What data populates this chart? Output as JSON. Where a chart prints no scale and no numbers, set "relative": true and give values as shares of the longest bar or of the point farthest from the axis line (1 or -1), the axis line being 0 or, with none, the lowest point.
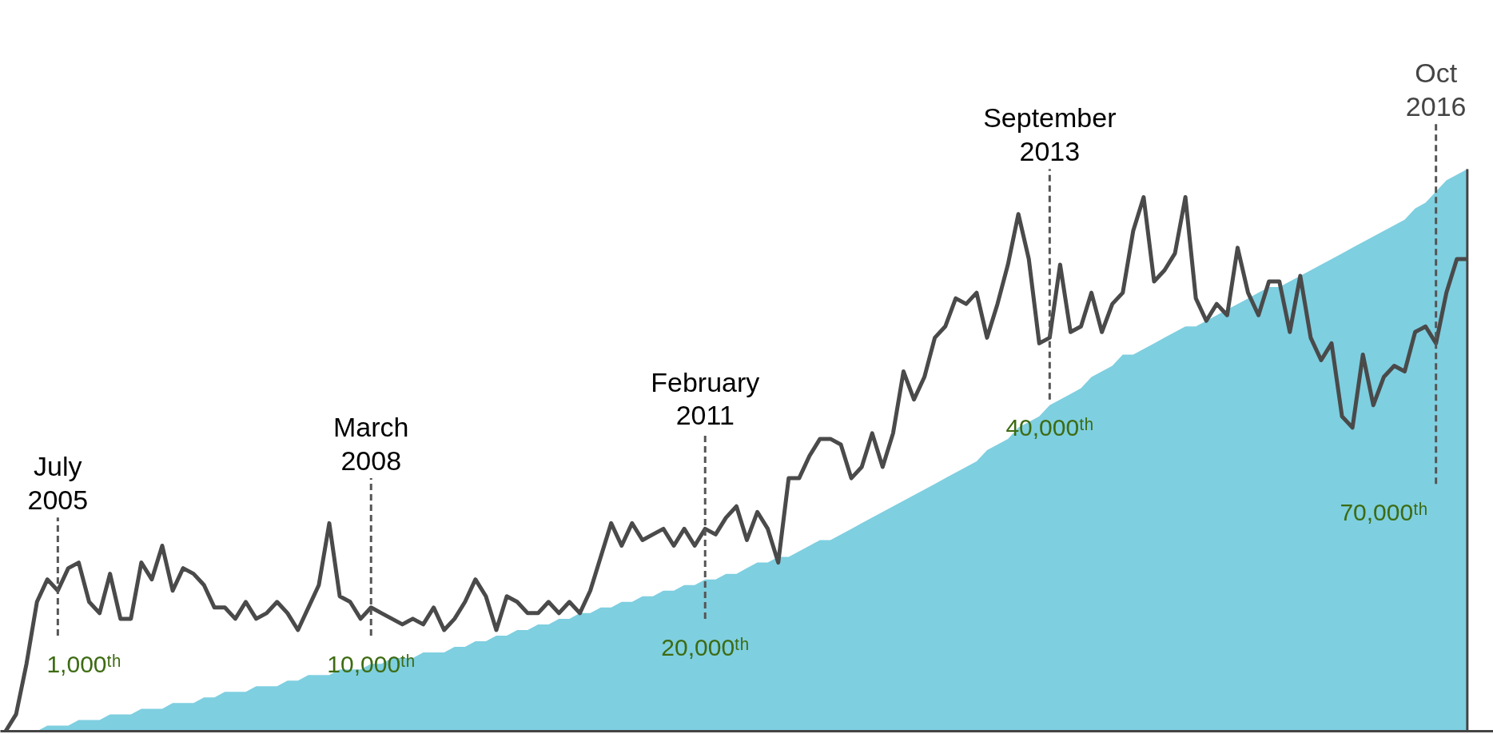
{
  "chart_data": {
    "type": "line",
    "relative": true,
    "categories": [
      null,
      null,
      null,
      null,
      null,
      "July\n2005",
      null,
      null,
      null,
      null,
      null,
      null,
      null,
      null,
      null,
      null,
      null,
      null,
      null,
      null,
      null,
      null,
      null,
      null,
      null,
      null,
      null,
      null,
      null,
      null,
      null,
      null,
      null,
      null,
      null,
      "March\n2008",
      null,
      null,
      null,
      null,
      null,
      null,
      null,
      null,
      null,
      null,
      null,
      null,
      null,
      null,
      null,
      null,
      null,
      null,
      null,
      null,
      null,
      null,
      null,
      null,
      null,
      null,
      null,
      null,
      null,
      null,
      null,
      "February\n2011",
      null,
      null,
      null,
      null,
      null,
      null,
      null,
      null,
      null,
      null,
      null,
      null,
      null,
      null,
      null,
      null,
      null,
      null,
      null,
      null,
      null,
      null,
      null,
      null,
      null,
      null,
      null,
      null,
      null,
      null,
      null,
      null,
      "September\n2013",
      null,
      null,
      null,
      null,
      null,
      null,
      null,
      null,
      null,
      null,
      null,
      null,
      null,
      null,
      null,
      null,
      null,
      null,
      null,
      null,
      null,
      null,
      null,
      null,
      null,
      null,
      null,
      null,
      null,
      null,
      null,
      null,
      null,
      null,
      null,
      null,
      "Oct\n2016",
      null,
      null,
      null
    ],
    "series": [
      {
        "type": "area",
        "color": "#7ecfe0",
        "values": [
          0,
          0,
          0,
          0,
          0.01,
          0.01,
          0.01,
          0.02,
          0.02,
          0.02,
          0.03,
          0.03,
          0.03,
          0.04,
          0.04,
          0.04,
          0.05,
          0.05,
          0.05,
          0.06,
          0.06,
          0.07,
          0.07,
          0.07,
          0.08,
          0.08,
          0.08,
          0.09,
          0.09,
          0.1,
          0.1,
          0.1,
          0.11,
          0.11,
          0.11,
          0.12,
          0.12,
          0.13,
          0.13,
          0.13,
          0.14,
          0.14,
          0.14,
          0.15,
          0.15,
          0.16,
          0.16,
          0.17,
          0.17,
          0.18,
          0.18,
          0.19,
          0.19,
          0.2,
          0.2,
          0.21,
          0.21,
          0.22,
          0.22,
          0.23,
          0.23,
          0.24,
          0.24,
          0.25,
          0.25,
          0.26,
          0.26,
          0.27,
          0.27,
          0.28,
          0.28,
          0.29,
          0.3,
          0.3,
          0.31,
          0.31,
          0.32,
          0.33,
          0.34,
          0.34,
          0.35,
          0.36,
          0.37,
          0.38,
          0.39,
          0.4,
          0.41,
          0.42,
          0.43,
          0.44,
          0.45,
          0.46,
          0.47,
          0.48,
          0.5,
          0.51,
          0.52,
          0.54,
          0.55,
          0.56,
          0.58,
          0.59,
          0.6,
          0.61,
          0.63,
          0.64,
          0.65,
          0.67,
          0.67,
          0.68,
          0.69,
          0.7,
          0.71,
          0.72,
          0.72,
          0.73,
          0.74,
          0.75,
          0.76,
          0.77,
          0.78,
          0.79,
          0.79,
          0.8,
          0.81,
          0.82,
          0.83,
          0.84,
          0.85,
          0.86,
          0.87,
          0.88,
          0.89,
          0.9,
          0.91,
          0.93,
          0.94,
          0.96,
          0.98,
          0.99,
          1.0
        ]
      },
      {
        "color": "#4a4a4a",
        "values": [
          0,
          0.03,
          0.12,
          0.23,
          0.27,
          0.25,
          0.29,
          0.3,
          0.23,
          0.21,
          0.28,
          0.2,
          0.2,
          0.3,
          0.27,
          0.33,
          0.25,
          0.29,
          0.28,
          0.26,
          0.22,
          0.22,
          0.2,
          0.23,
          0.2,
          0.21,
          0.23,
          0.21,
          0.18,
          0.22,
          0.26,
          0.37,
          0.24,
          0.23,
          0.2,
          0.22,
          0.21,
          0.2,
          0.19,
          0.2,
          0.19,
          0.22,
          0.18,
          0.2,
          0.23,
          0.27,
          0.24,
          0.18,
          0.24,
          0.23,
          0.21,
          0.21,
          0.23,
          0.21,
          0.23,
          0.21,
          0.25,
          0.31,
          0.37,
          0.33,
          0.37,
          0.34,
          0.35,
          0.36,
          0.33,
          0.36,
          0.33,
          0.36,
          0.35,
          0.38,
          0.4,
          0.34,
          0.39,
          0.36,
          0.3,
          0.45,
          0.45,
          0.49,
          0.52,
          0.52,
          0.51,
          0.45,
          0.47,
          0.53,
          0.47,
          0.53,
          0.64,
          0.59,
          0.63,
          0.7,
          0.72,
          0.77,
          0.76,
          0.78,
          0.7,
          0.76,
          0.83,
          0.92,
          0.84,
          0.69,
          0.7,
          0.83,
          0.71,
          0.72,
          0.78,
          0.71,
          0.76,
          0.78,
          0.89,
          0.95,
          0.8,
          0.82,
          0.85,
          0.95,
          0.77,
          0.73,
          0.76,
          0.74,
          0.86,
          0.78,
          0.74,
          0.8,
          0.8,
          0.71,
          0.81,
          0.7,
          0.66,
          0.69,
          0.56,
          0.54,
          0.67,
          0.58,
          0.63,
          0.65,
          0.64,
          0.71,
          0.72,
          0.69,
          0.78,
          0.84,
          0.84
        ]
      }
    ],
    "annotations": [
      "1,000ᵗʰ",
      "10,000ᵗʰ",
      "20,000ᵗʰ",
      "40,000ᵗʰ",
      "70,000ᵗʰ"
    ]
  }
}
